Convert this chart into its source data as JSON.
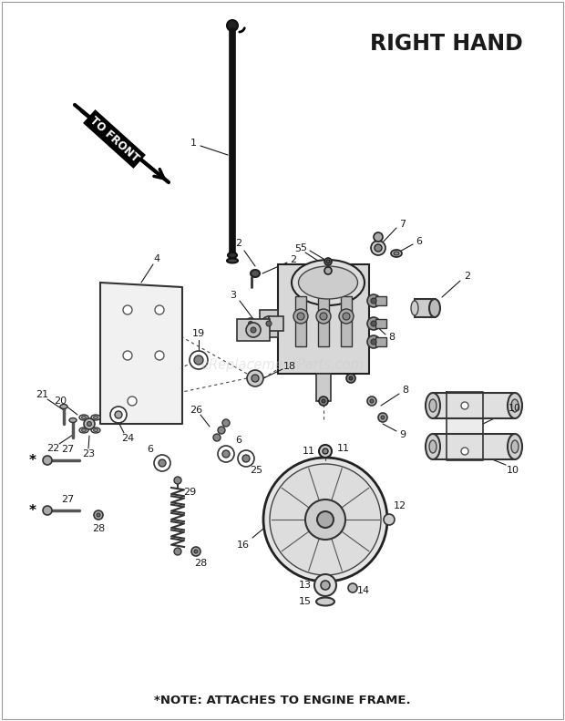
{
  "title": "RIGHT HAND",
  "note": "*NOTE: ATTACHES TO ENGINE FRAME.",
  "to_front_label": "TO FRONT",
  "background_color": "#ffffff",
  "line_color": "#1a1a1a",
  "text_color": "#1a1a1a",
  "watermark": "eReplacementParts.com",
  "fig_w": 6.2,
  "fig_h": 7.91,
  "dpi": 100
}
